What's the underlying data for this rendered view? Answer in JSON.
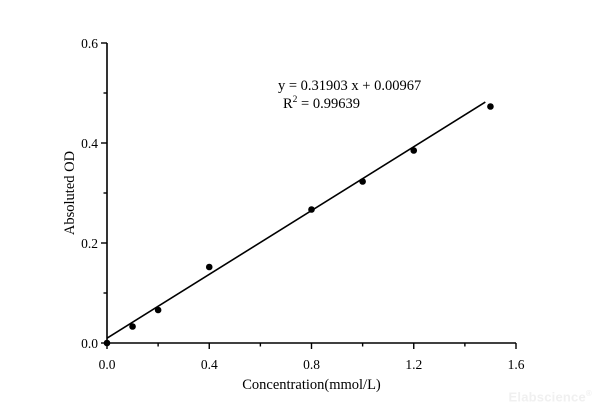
{
  "watermark": {
    "text": "Elabscience",
    "registered_mark": "®",
    "color": "#f0f0f0"
  },
  "chart_data": {
    "type": "scatter",
    "title": "",
    "xlabel": "Concentration(mmol/L)",
    "ylabel": "Absoluted OD",
    "xlim": [
      0.0,
      1.6
    ],
    "ylim": [
      0.0,
      0.6
    ],
    "x_major_ticks": [
      0.0,
      0.4,
      0.8,
      1.2,
      1.6
    ],
    "x_tick_labels": [
      "0.0",
      "0.4",
      "0.8",
      "1.2",
      "1.6"
    ],
    "x_minor_ticks": [
      0.2,
      0.6,
      1.0,
      1.4
    ],
    "y_major_ticks": [
      0.0,
      0.2,
      0.4,
      0.6
    ],
    "y_tick_labels": [
      "0.0",
      "0.2",
      "0.4",
      "0.6"
    ],
    "y_minor_ticks": [
      0.1,
      0.3,
      0.5
    ],
    "grid": false,
    "legend": null,
    "axis_color": "#000000",
    "series": [
      {
        "name": "standards",
        "marker": "filled-circle",
        "color": "#000000",
        "points": [
          {
            "x": 0.0,
            "y": 0.0
          },
          {
            "x": 0.1,
            "y": 0.033
          },
          {
            "x": 0.2,
            "y": 0.066
          },
          {
            "x": 0.4,
            "y": 0.152
          },
          {
            "x": 0.8,
            "y": 0.267
          },
          {
            "x": 1.0,
            "y": 0.323
          },
          {
            "x": 1.2,
            "y": 0.385
          },
          {
            "x": 1.5,
            "y": 0.473
          }
        ]
      }
    ],
    "fit_line": {
      "slope": 0.31903,
      "intercept": 0.00967,
      "r_squared": 0.99639,
      "x_start": 0.0,
      "x_end": 1.48,
      "color": "#000000"
    },
    "annotation": {
      "equation_text": "y = 0.31903 x + 0.00967",
      "r2_base": "R",
      "r2_superscript": "2",
      "r2_rest": " = 0.99639"
    }
  }
}
